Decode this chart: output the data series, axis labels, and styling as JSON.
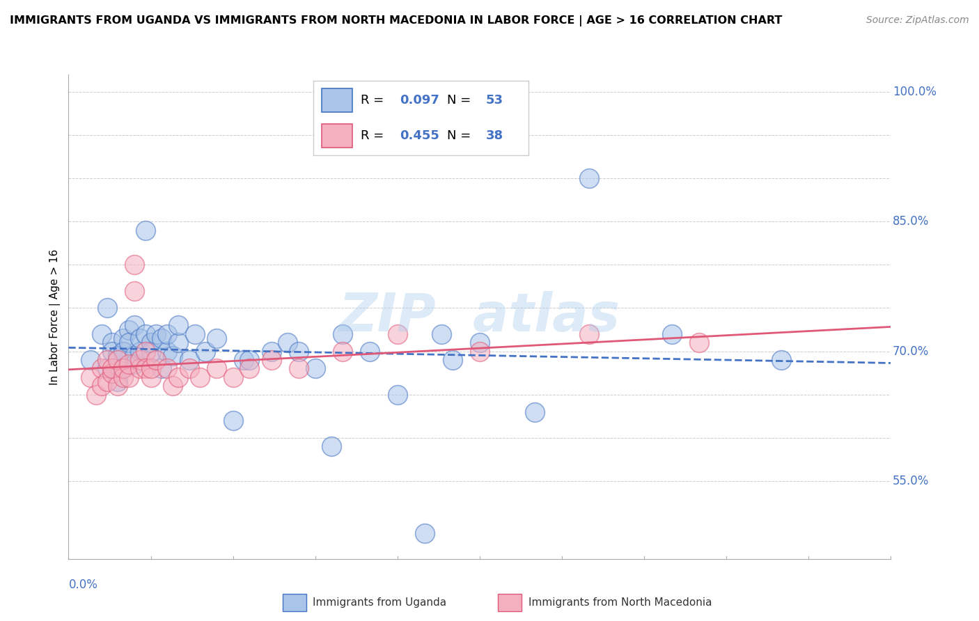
{
  "title": "IMMIGRANTS FROM UGANDA VS IMMIGRANTS FROM NORTH MACEDONIA IN LABOR FORCE | AGE > 16 CORRELATION CHART",
  "source": "Source: ZipAtlas.com",
  "ylabel": "In Labor Force | Age > 16",
  "x_range": [
    0.0,
    0.15
  ],
  "y_range": [
    0.46,
    1.02
  ],
  "y_ticks": [
    0.55,
    0.7,
    0.85,
    1.0
  ],
  "uganda_R": 0.097,
  "uganda_N": 53,
  "macedonia_R": 0.455,
  "macedonia_N": 38,
  "uganda_color": "#A8C4E8",
  "macedonia_color": "#F5B0C0",
  "uganda_line_color": "#4472C4",
  "macedonia_line_color": "#E05878",
  "uganda_points_x": [
    0.004,
    0.006,
    0.007,
    0.007,
    0.008,
    0.008,
    0.009,
    0.009,
    0.01,
    0.01,
    0.01,
    0.011,
    0.011,
    0.012,
    0.012,
    0.012,
    0.013,
    0.013,
    0.014,
    0.014,
    0.015,
    0.015,
    0.016,
    0.017,
    0.017,
    0.018,
    0.018,
    0.019,
    0.02,
    0.02,
    0.022,
    0.023,
    0.025,
    0.027,
    0.03,
    0.032,
    0.033,
    0.037,
    0.04,
    0.042,
    0.045,
    0.048,
    0.05,
    0.055,
    0.06,
    0.065,
    0.068,
    0.07,
    0.075,
    0.085,
    0.095,
    0.11,
    0.13
  ],
  "uganda_points_y": [
    0.69,
    0.72,
    0.75,
    0.68,
    0.71,
    0.7,
    0.695,
    0.665,
    0.715,
    0.7,
    0.68,
    0.725,
    0.71,
    0.695,
    0.685,
    0.73,
    0.7,
    0.715,
    0.84,
    0.72,
    0.7,
    0.71,
    0.72,
    0.715,
    0.68,
    0.7,
    0.72,
    0.695,
    0.71,
    0.73,
    0.69,
    0.72,
    0.7,
    0.715,
    0.62,
    0.69,
    0.69,
    0.7,
    0.71,
    0.7,
    0.68,
    0.59,
    0.72,
    0.7,
    0.65,
    0.49,
    0.72,
    0.69,
    0.71,
    0.63,
    0.9,
    0.72,
    0.69
  ],
  "macedonia_points_x": [
    0.004,
    0.005,
    0.006,
    0.006,
    0.007,
    0.007,
    0.008,
    0.008,
    0.009,
    0.009,
    0.01,
    0.01,
    0.011,
    0.011,
    0.012,
    0.012,
    0.013,
    0.013,
    0.014,
    0.014,
    0.015,
    0.015,
    0.016,
    0.018,
    0.019,
    0.02,
    0.022,
    0.024,
    0.027,
    0.03,
    0.033,
    0.037,
    0.042,
    0.05,
    0.06,
    0.075,
    0.095,
    0.115
  ],
  "macedonia_points_y": [
    0.67,
    0.65,
    0.68,
    0.66,
    0.69,
    0.665,
    0.675,
    0.68,
    0.69,
    0.66,
    0.67,
    0.68,
    0.67,
    0.685,
    0.8,
    0.77,
    0.68,
    0.69,
    0.7,
    0.68,
    0.67,
    0.68,
    0.69,
    0.68,
    0.66,
    0.67,
    0.68,
    0.67,
    0.68,
    0.67,
    0.68,
    0.69,
    0.68,
    0.7,
    0.72,
    0.7,
    0.72,
    0.71
  ]
}
